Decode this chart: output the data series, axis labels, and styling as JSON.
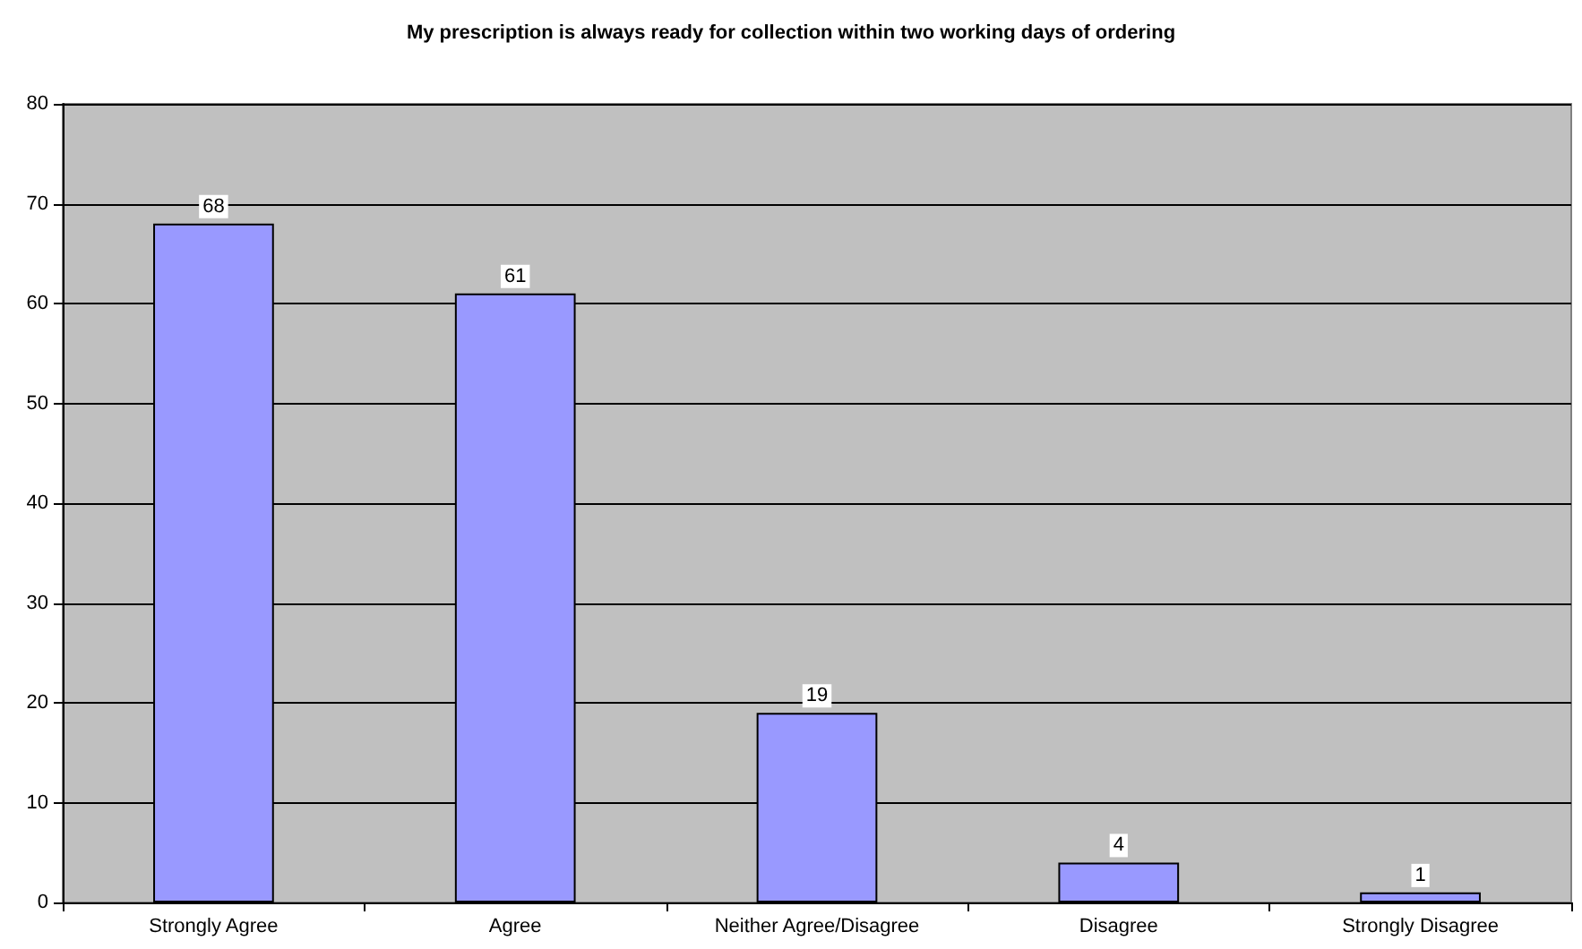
{
  "chart_data": {
    "type": "bar",
    "title": "My prescription is always ready for collection within two working days of ordering",
    "categories": [
      "Strongly Agree",
      "Agree",
      "Neither Agree/Disagree",
      "Disagree",
      "Strongly Disagree"
    ],
    "values": [
      68,
      61,
      19,
      4,
      1
    ],
    "color": "#9999ff",
    "ylim": [
      0,
      80
    ],
    "yticks": [
      0,
      10,
      20,
      30,
      40,
      50,
      60,
      70,
      80
    ],
    "grid": "y",
    "data_labels": true
  }
}
